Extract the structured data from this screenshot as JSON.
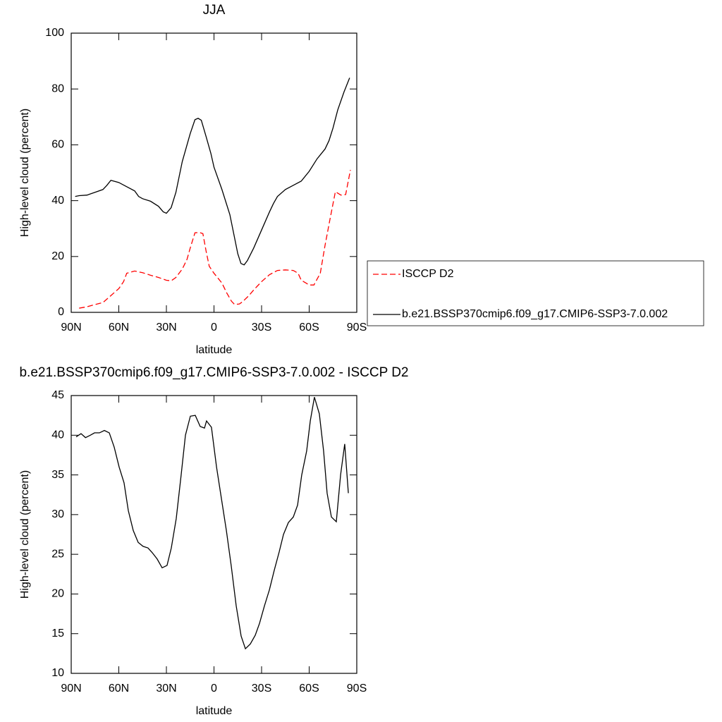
{
  "chart_data": [
    {
      "type": "line",
      "title": "JJA",
      "xlabel": "latitude",
      "ylabel": "High-level cloud (percent)",
      "xlim": [
        90,
        -90
      ],
      "xticks": [
        {
          "value": 90,
          "label": "90N"
        },
        {
          "value": 60,
          "label": "60N"
        },
        {
          "value": 30,
          "label": "30N"
        },
        0,
        {
          "value": -30,
          "label": "30S"
        },
        {
          "value": -60,
          "label": "60S"
        },
        {
          "value": -90,
          "label": "90S"
        }
      ],
      "ylim": [
        0,
        100
      ],
      "yticks": [
        0,
        20,
        40,
        60,
        80,
        100
      ],
      "legend": "right",
      "series": [
        {
          "name": "ISCCP D2",
          "color": "#ff0000",
          "dashed": true,
          "x": [
            85,
            80,
            75,
            70,
            65,
            60,
            57,
            55,
            50,
            45,
            40,
            35,
            30,
            27,
            24,
            20,
            17,
            15,
            12,
            9,
            7,
            5,
            3,
            0,
            -5,
            -8,
            -11,
            -13,
            -16,
            -18,
            -22,
            -25,
            -30,
            -35,
            -40,
            -45,
            -50,
            -53,
            -55,
            -58,
            -60,
            -63,
            -67,
            -70,
            -73,
            -76.5,
            -80,
            -83,
            -86
          ],
          "values": [
            1.5,
            2,
            2.8,
            3.5,
            6,
            8.5,
            11,
            14,
            14.8,
            14.2,
            13.3,
            12.5,
            11.5,
            11.3,
            12.5,
            15.5,
            19,
            23,
            28.5,
            28.6,
            28.2,
            22,
            16.5,
            14,
            10.5,
            7,
            4,
            2.8,
            3,
            3.8,
            6,
            8,
            11,
            13.5,
            15,
            15.2,
            15,
            14,
            11.5,
            10.5,
            9.8,
            9.8,
            14,
            24,
            33,
            43.2,
            42,
            42.2,
            51
          ]
        },
        {
          "name": "b.e21.BSSP370cmip6.f09_g17.CMIP6-SSP3-7.0.002",
          "color": "#000000",
          "dashed": false,
          "x": [
            87.5,
            85,
            80,
            75,
            70,
            67.5,
            65,
            60,
            55,
            50,
            47.5,
            45,
            40,
            35,
            32,
            30,
            27,
            24,
            20,
            17,
            15,
            12,
            10,
            8,
            5,
            2,
            0,
            -5,
            -10,
            -12.5,
            -15,
            -17,
            -19,
            -21,
            -25,
            -30,
            -35,
            -37.5,
            -40,
            -45,
            -50,
            -55,
            -60,
            -65,
            -70,
            -72.5,
            -75,
            -78,
            -82,
            -85.5
          ],
          "values": [
            41.5,
            41.8,
            42,
            43,
            44,
            45.5,
            47.3,
            46.5,
            45,
            43.5,
            41.5,
            40.7,
            39.8,
            38,
            36,
            35.5,
            37.5,
            43,
            54,
            60,
            64,
            69,
            69.5,
            68.8,
            63,
            57,
            52,
            44,
            35,
            28,
            21,
            17.5,
            17,
            18.5,
            23,
            29.5,
            36,
            39,
            41.5,
            44,
            45.5,
            47,
            50.5,
            55,
            58.5,
            61.5,
            66,
            72.5,
            79,
            84
          ]
        }
      ]
    },
    {
      "type": "line",
      "title": "b.e21.BSSP370cmip6.f09_g17.CMIP6-SSP3-7.0.002 - ISCCP D2",
      "xlabel": "latitude",
      "ylabel": "High-level cloud (percent)",
      "xlim": [
        90,
        -90
      ],
      "xticks": [
        {
          "value": 90,
          "label": "90N"
        },
        {
          "value": 60,
          "label": "60N"
        },
        {
          "value": 30,
          "label": "30N"
        },
        0,
        {
          "value": -30,
          "label": "30S"
        },
        {
          "value": -60,
          "label": "60S"
        },
        {
          "value": -90,
          "label": "90S"
        }
      ],
      "ylim": [
        10,
        45
      ],
      "yticks": [
        10,
        15,
        20,
        25,
        30,
        35,
        40,
        45
      ],
      "series": [
        {
          "color": "#000000",
          "dashed": false,
          "x": [
            86.9,
            83.8,
            81,
            78,
            75.3,
            72.2,
            69.1,
            66,
            62.9,
            59.8,
            56.7,
            54,
            50.9,
            47.8,
            44.7,
            41.6,
            38.9,
            35.8,
            32.7,
            29.6,
            26.9,
            23.8,
            20.7,
            18,
            14.9,
            11.8,
            8.7,
            6,
            4.7,
            1.6,
            -1.6,
            -4.7,
            -7.8,
            -10.9,
            -14,
            -17.1,
            -19.8,
            -22.9,
            -26,
            -28.7,
            -31.8,
            -34.9,
            -38,
            -41.1,
            -43.8,
            -46.9,
            -50,
            -52.7,
            -55.3,
            -58.4,
            -60.7,
            -63.3,
            -66.4,
            -69.1,
            -71.3,
            -74,
            -77.1,
            -79.8,
            -82.4,
            -84.7
          ],
          "values": [
            39.8,
            40.2,
            39.7,
            40,
            40.3,
            40.3,
            40.6,
            40.3,
            38.5,
            36,
            34,
            30.5,
            28,
            26.5,
            26,
            25.8,
            25.2,
            24.4,
            23.3,
            23.6,
            25.8,
            29.5,
            35,
            40,
            42.4,
            42.5,
            41.1,
            40.9,
            41.8,
            41,
            36,
            32,
            28,
            23.5,
            18.5,
            14.7,
            13.1,
            13.7,
            14.8,
            16.3,
            18.5,
            20.5,
            23,
            25.3,
            27.5,
            29,
            29.7,
            31.2,
            35,
            38,
            41.8,
            44.8,
            42.7,
            38,
            32.7,
            29.7,
            29.1,
            35,
            38.9,
            32.7
          ]
        }
      ]
    }
  ]
}
